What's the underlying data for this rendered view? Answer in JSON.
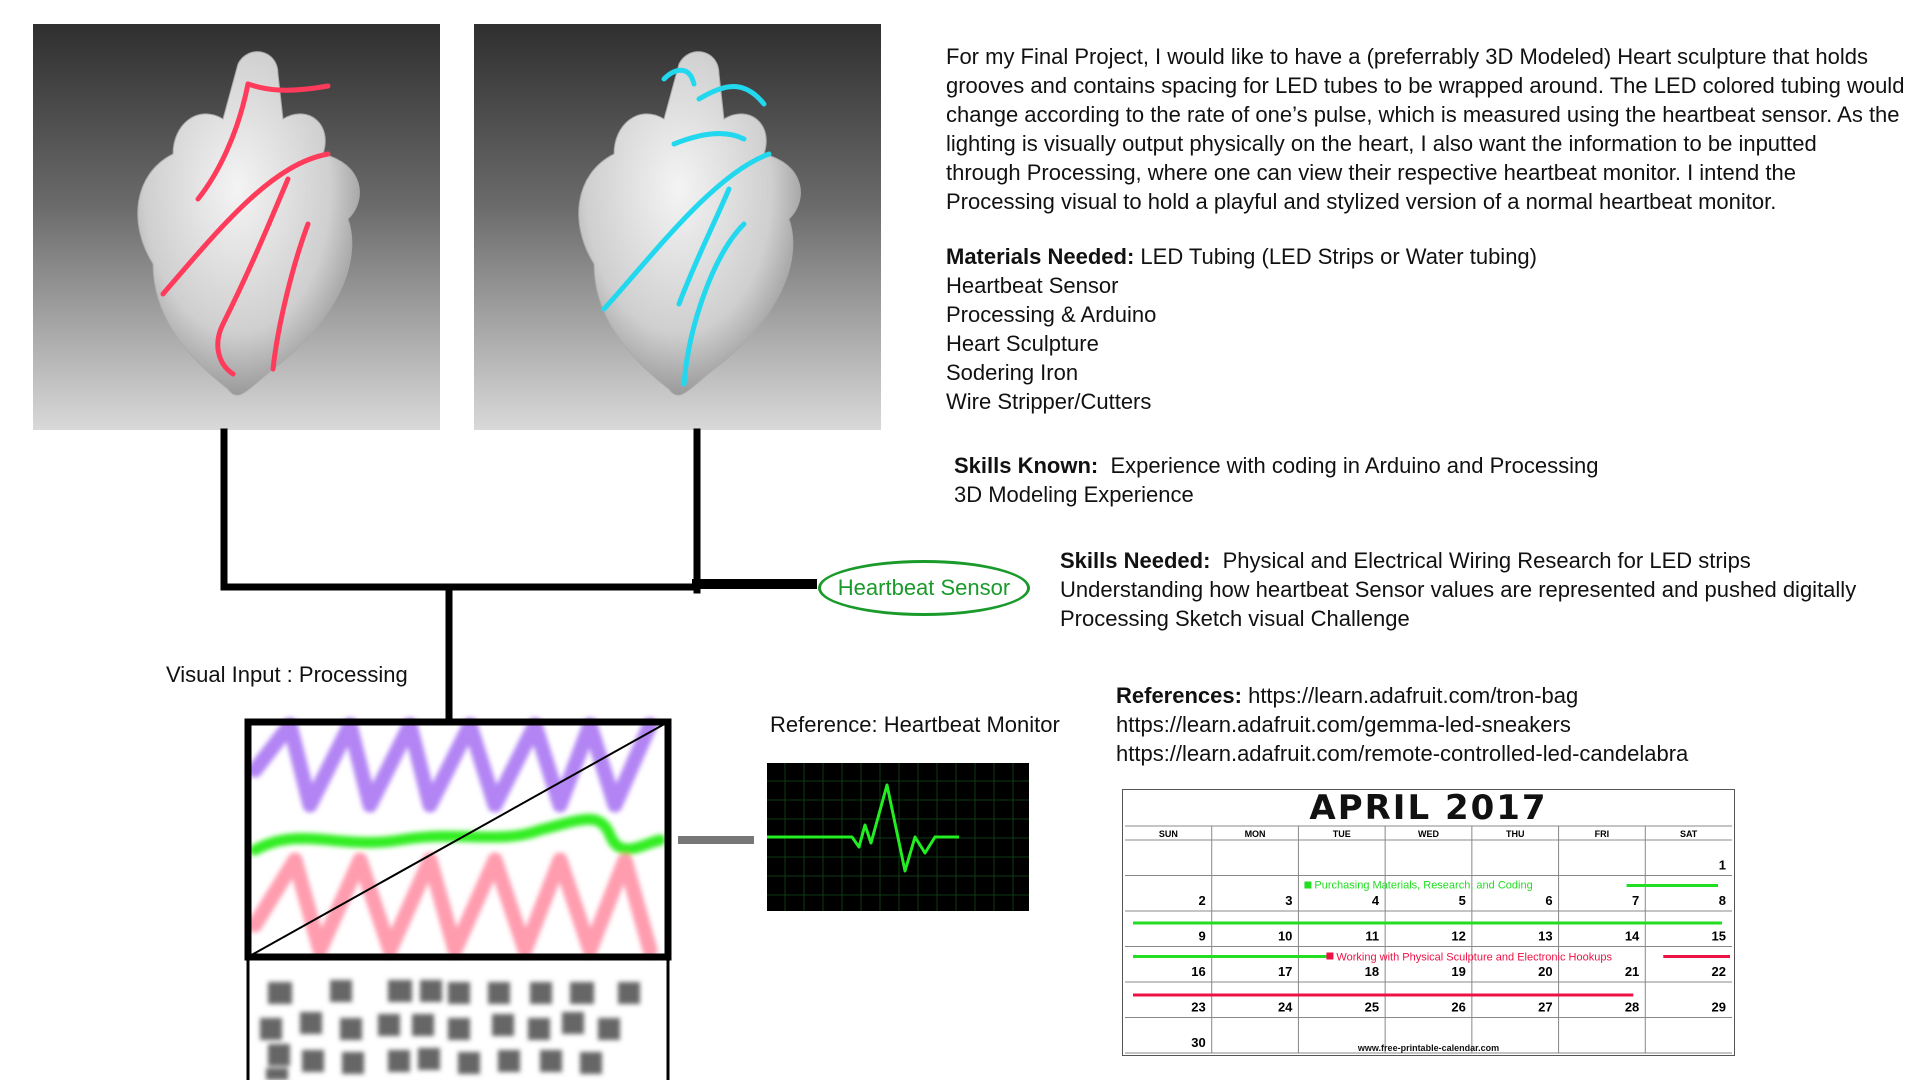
{
  "description": {
    "lines": [
      "For my Final Project, I would like to have a (preferrably 3D Modeled) Heart sculpture that holds",
      "grooves and contains spacing for LED tubes to be wrapped around. The LED colored tubing would",
      "change according to the rate of one’s pulse, which is measured using the heartbeat sensor. As the",
      "lighting is visually output physically on the heart, I also want the information to be inputted",
      "through Processing, where one can view their respective heartbeat monitor. I intend the",
      "Processing visual to hold a playful and stylized version of a normal heartbeat monitor."
    ]
  },
  "materials": {
    "heading": "Materials Needed:",
    "first": "LED Tubing (LED Strips or Water tubing)",
    "items": [
      "Heartbeat Sensor",
      "Processing & Arduino",
      "Heart Sculpture",
      "Sodering Iron",
      "Wire Stripper/Cutters"
    ]
  },
  "skills_known": {
    "heading": "Skills Known:",
    "first": "Experience with coding in Arduino and Processing",
    "items": [
      "3D Modeling Experience"
    ]
  },
  "skills_needed": {
    "heading": "Skills Needed:",
    "first": "Physical and Electrical Wiring Research for LED strips",
    "items": [
      "Understanding how heartbeat Sensor values are represented and pushed digitally",
      "Processing Sketch visual Challenge"
    ]
  },
  "references": {
    "heading": "References:",
    "first": "https://learn.adafruit.com/tron-bag",
    "items": [
      "https://learn.adafruit.com/gemma-led-sneakers",
      "https://learn.adafruit.com/remote-controlled-led-candelabra"
    ]
  },
  "labels": {
    "sensor": "Heartbeat Sensor",
    "visual_input": "Visual Input : Processing",
    "reference_monitor": "Reference: Heartbeat Monitor"
  },
  "calendar": {
    "title": "APRIL  2017",
    "days": [
      "SUN",
      "MON",
      "TUE",
      "WED",
      "THU",
      "FRI",
      "SAT"
    ],
    "weeks": [
      [
        "",
        "",
        "",
        "",
        "",
        "",
        "1"
      ],
      [
        "2",
        "3",
        "4",
        "5",
        "6",
        "7",
        "8"
      ],
      [
        "9",
        "10",
        "11",
        "12",
        "13",
        "14",
        "15"
      ],
      [
        "16",
        "17",
        "18",
        "19",
        "20",
        "21",
        "22"
      ],
      [
        "23",
        "24",
        "25",
        "26",
        "27",
        "28",
        "29"
      ],
      [
        "30",
        "",
        "",
        "",
        "",
        "",
        ""
      ]
    ],
    "event_green": "Purchasing Materials, Research, and Coding",
    "event_red": "Working with Physical Sculpture and Electronic Hookups",
    "footer": "www.free-printable-calendar.com",
    "colors": {
      "green": "#22dd22",
      "red": "#ee1144"
    }
  },
  "colors": {
    "tube_left": "#ff3b5c",
    "tube_right": "#22d8ee",
    "monitor_line": "#22ee22"
  }
}
